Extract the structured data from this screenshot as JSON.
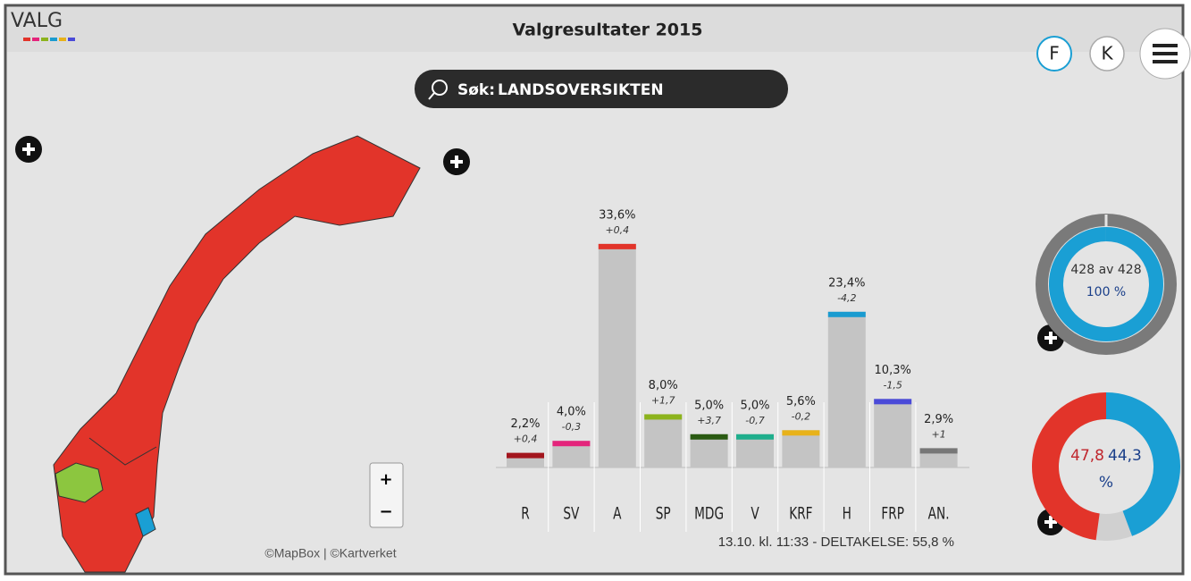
{
  "header": {
    "logo": "VALG",
    "title": "Valgresultater 2015",
    "buttons": [
      "F",
      "K"
    ]
  },
  "search": {
    "prefix": "Søk:",
    "query": "LANDSOVERSIKTEN"
  },
  "map": {
    "attribution": "©MapBox | ©Kartverket",
    "zoom": [
      "+",
      "−"
    ]
  },
  "chart_data": {
    "type": "bar",
    "categories": [
      "R",
      "SV",
      "A",
      "SP",
      "MDG",
      "V",
      "KRF",
      "H",
      "FRP",
      "AN."
    ],
    "values": [
      2.2,
      4.0,
      33.6,
      8.0,
      5.0,
      5.0,
      5.6,
      23.4,
      10.3,
      2.9
    ],
    "value_labels": [
      "2,2%",
      "4,0%",
      "33,6%",
      "8,0%",
      "5,0%",
      "5,0%",
      "5,6%",
      "23,4%",
      "10,3%",
      "2,9%"
    ],
    "changes": [
      "+0,4",
      "-0,3",
      "+0,4",
      "+1,7",
      "+3,7",
      "-0,7",
      "-0,2",
      "-4,2",
      "-1,5",
      "+1"
    ],
    "colors": [
      "#a3161e",
      "#e4247b",
      "#e2342a",
      "#8cb31d",
      "#2a5a12",
      "#1fae8c",
      "#e8b21a",
      "#1a9bd0",
      "#4a4ad8",
      "#777777"
    ],
    "ylim": [
      0,
      36
    ],
    "footnote": "13.10. kl. 11:33 - DELTAKELSE: 55,8 %"
  },
  "counted": {
    "label": "428 av 428",
    "value": 100,
    "value_label": "100 %",
    "color": "#1a9fd4"
  },
  "blocs": {
    "values": [
      47.8,
      44.3
    ],
    "value_labels": [
      "47,8",
      "44,3"
    ],
    "unit": "%",
    "colors": [
      "#e2342a",
      "#1a9fd4"
    ]
  }
}
